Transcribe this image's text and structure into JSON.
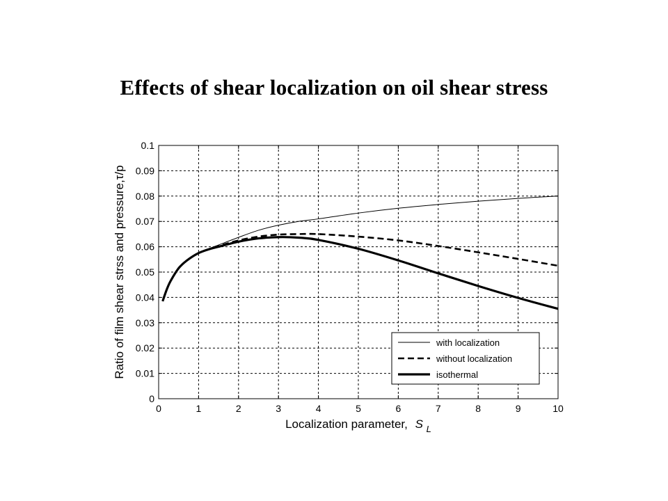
{
  "slide": {
    "title": "Effects of shear localization  on oil shear stress"
  },
  "chart_data": {
    "type": "line",
    "xlabel": "Localization parameter,",
    "xlabel_symbol": "S",
    "xlabel_subscript": "L",
    "ylabel": "Ratio of film shear strss and pressure,τ/p",
    "xlim": [
      0,
      10
    ],
    "ylim": [
      0,
      0.1
    ],
    "xticks": [
      0,
      1,
      2,
      3,
      4,
      5,
      6,
      7,
      8,
      9,
      10
    ],
    "xtick_labels": [
      "0",
      "1",
      "2",
      "3",
      "4",
      "5",
      "6",
      "7",
      "8",
      "9",
      "10"
    ],
    "yticks": [
      0,
      0.01,
      0.02,
      0.03,
      0.04,
      0.05,
      0.06,
      0.07,
      0.08,
      0.09,
      0.1
    ],
    "ytick_labels": [
      "0",
      "0.01",
      "0.02",
      "0.03",
      "0.04",
      "0.05",
      "0.06",
      "0.07",
      "0.08",
      "0.09",
      "0.1"
    ],
    "grid": true,
    "legend_position": "bottom-right",
    "series": [
      {
        "name": "with localization",
        "style": "thin-solid",
        "x": [
          0.1,
          0.2,
          0.3,
          0.5,
          0.7,
          1.0,
          1.3,
          1.5,
          2.0,
          2.5,
          3.0,
          3.5,
          4.0,
          5.0,
          6.0,
          7.0,
          8.0,
          9.0,
          10.0
        ],
        "y": [
          0.0385,
          0.043,
          0.0465,
          0.0515,
          0.0545,
          0.0575,
          0.0595,
          0.0607,
          0.0637,
          0.0665,
          0.0685,
          0.07,
          0.071,
          0.0733,
          0.0752,
          0.0767,
          0.078,
          0.0791,
          0.08
        ]
      },
      {
        "name": "without localization",
        "style": "dashed",
        "x": [
          0.1,
          0.2,
          0.3,
          0.5,
          0.7,
          1.0,
          1.3,
          1.5,
          2.0,
          2.5,
          3.0,
          3.5,
          4.0,
          5.0,
          6.0,
          7.0,
          8.0,
          9.0,
          10.0
        ],
        "y": [
          0.0385,
          0.043,
          0.0465,
          0.0515,
          0.0545,
          0.0575,
          0.0593,
          0.0603,
          0.0625,
          0.064,
          0.0648,
          0.065,
          0.065,
          0.064,
          0.0625,
          0.0603,
          0.0578,
          0.0552,
          0.0525
        ]
      },
      {
        "name": "isothermal",
        "style": "thick-solid",
        "x": [
          0.1,
          0.2,
          0.3,
          0.5,
          0.7,
          1.0,
          1.3,
          1.5,
          2.0,
          2.5,
          3.0,
          3.5,
          4.0,
          5.0,
          6.0,
          7.0,
          8.0,
          9.0,
          10.0
        ],
        "y": [
          0.0385,
          0.043,
          0.0465,
          0.0515,
          0.0545,
          0.0575,
          0.0592,
          0.06,
          0.062,
          0.0633,
          0.0638,
          0.0636,
          0.0627,
          0.0592,
          0.0546,
          0.0495,
          0.0445,
          0.0398,
          0.0355
        ]
      }
    ]
  }
}
